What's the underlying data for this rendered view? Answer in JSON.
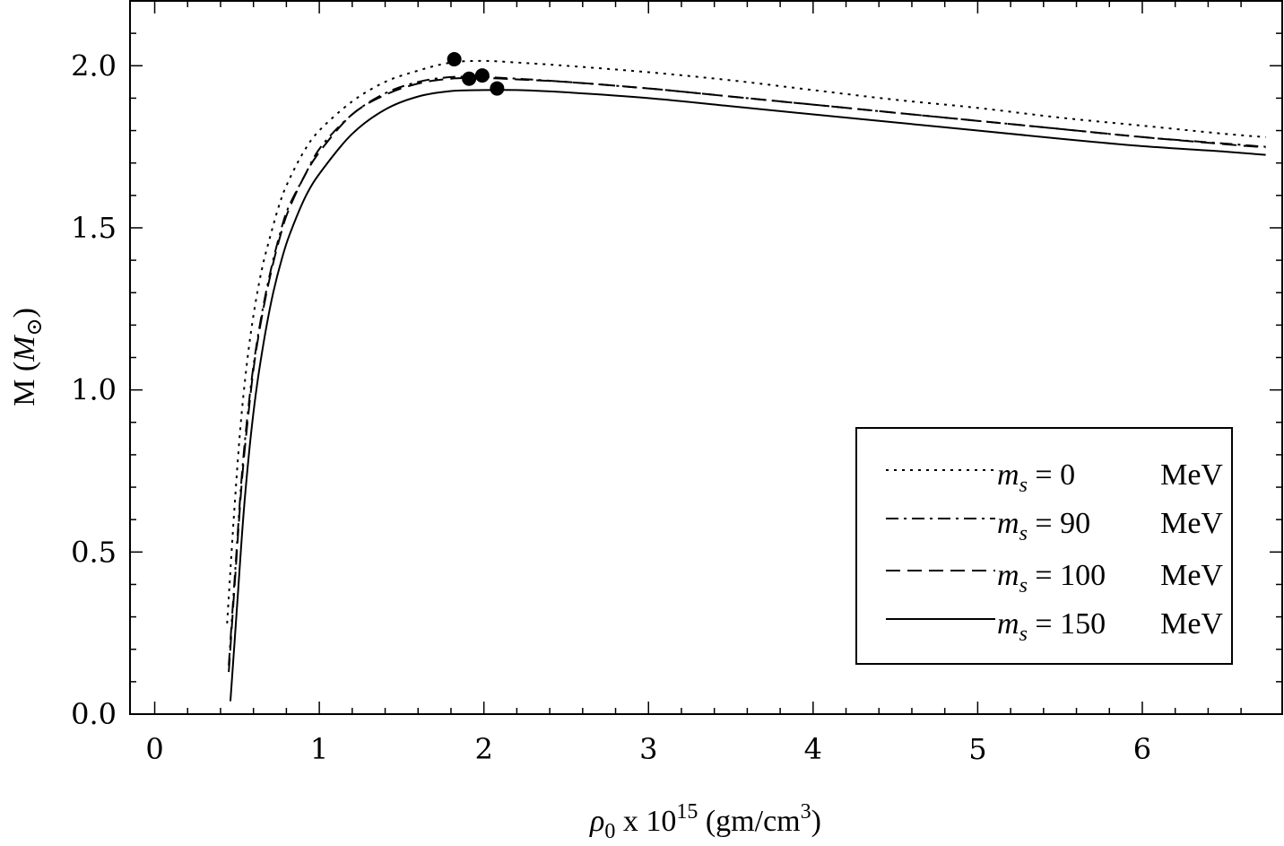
{
  "chart_data": {
    "type": "line",
    "title": "",
    "xlabel": {
      "rho": "ρ",
      "rho_sub": "0",
      "mid": " x 10",
      "exp": "15",
      "unit": " (gm/cm",
      "unit_exp": "3",
      "close": ")"
    },
    "ylabel": {
      "prefix": "M (",
      "italic": "M",
      "sub": "⊙",
      "close": ")"
    },
    "xlim": [
      -0.15,
      6.85
    ],
    "ylim": [
      0,
      2.2
    ],
    "xticks": [
      0,
      1,
      2,
      3,
      4,
      5,
      6
    ],
    "xtick_labels": [
      "0",
      "1",
      "2",
      "3",
      "4",
      "5",
      "6"
    ],
    "yticks": [
      0.0,
      0.5,
      1.0,
      1.5,
      2.0
    ],
    "ytick_labels": [
      "0.0",
      "0.5",
      "1.0",
      "1.5",
      "2.0"
    ],
    "grid": false,
    "legend_position": "bottom-right",
    "series": [
      {
        "name": "m_s = 0 MeV",
        "label": {
          "m": "m",
          "sub": "s",
          "eq": " = 0",
          "unit": "MeV"
        },
        "style": "dotted",
        "x": [
          0.44,
          0.48,
          0.52,
          0.56,
          0.6,
          0.65,
          0.7,
          0.75,
          0.8,
          0.9,
          1.0,
          1.2,
          1.4,
          1.6,
          1.8,
          2.0,
          2.2,
          2.5,
          3.0,
          3.5,
          4.0,
          4.5,
          5.0,
          5.5,
          6.0,
          6.5,
          6.75
        ],
        "y": [
          0.28,
          0.6,
          0.88,
          1.08,
          1.23,
          1.37,
          1.47,
          1.56,
          1.63,
          1.73,
          1.8,
          1.89,
          1.95,
          1.985,
          2.01,
          2.015,
          2.01,
          2.0,
          1.98,
          1.955,
          1.925,
          1.895,
          1.87,
          1.84,
          1.815,
          1.79,
          1.78
        ]
      },
      {
        "name": "m_s = 90 MeV",
        "label": {
          "m": "m",
          "sub": "s",
          "eq": " = 90",
          "unit": "MeV"
        },
        "style": "dashdot",
        "x": [
          0.45,
          0.49,
          0.53,
          0.57,
          0.61,
          0.66,
          0.71,
          0.76,
          0.81,
          0.91,
          1.01,
          1.2,
          1.4,
          1.6,
          1.8,
          2.0,
          2.2,
          2.5,
          3.0,
          3.5,
          4.0,
          4.5,
          5.0,
          5.5,
          6.0,
          6.5,
          6.75
        ],
        "y": [
          0.15,
          0.45,
          0.74,
          0.95,
          1.11,
          1.26,
          1.38,
          1.48,
          1.56,
          1.66,
          1.75,
          1.85,
          1.915,
          1.95,
          1.965,
          1.965,
          1.96,
          1.95,
          1.93,
          1.905,
          1.88,
          1.855,
          1.83,
          1.805,
          1.78,
          1.76,
          1.75
        ]
      },
      {
        "name": "m_s = 100 MeV",
        "label": {
          "m": "m",
          "sub": "s",
          "eq": " = 100",
          "unit": "MeV"
        },
        "style": "dashed",
        "x": [
          0.45,
          0.49,
          0.53,
          0.57,
          0.61,
          0.66,
          0.71,
          0.76,
          0.81,
          0.91,
          1.01,
          1.2,
          1.4,
          1.6,
          1.8,
          2.0,
          2.2,
          2.5,
          3.0,
          3.5,
          4.0,
          4.5,
          5.0,
          5.5,
          6.0,
          6.5,
          6.75
        ],
        "y": [
          0.13,
          0.43,
          0.72,
          0.93,
          1.1,
          1.25,
          1.37,
          1.47,
          1.55,
          1.66,
          1.74,
          1.85,
          1.91,
          1.945,
          1.96,
          1.962,
          1.958,
          1.95,
          1.93,
          1.905,
          1.88,
          1.855,
          1.83,
          1.805,
          1.78,
          1.758,
          1.748
        ]
      },
      {
        "name": "m_s = 150 MeV",
        "label": {
          "m": "m",
          "sub": "s",
          "eq": " = 150",
          "unit": "MeV"
        },
        "style": "solid",
        "x": [
          0.46,
          0.5,
          0.54,
          0.58,
          0.62,
          0.67,
          0.72,
          0.77,
          0.82,
          0.92,
          1.02,
          1.2,
          1.4,
          1.6,
          1.8,
          2.0,
          2.2,
          2.5,
          3.0,
          3.5,
          4.0,
          4.5,
          5.0,
          5.5,
          6.0,
          6.5,
          6.75
        ],
        "y": [
          0.04,
          0.33,
          0.62,
          0.84,
          1.01,
          1.17,
          1.3,
          1.4,
          1.48,
          1.6,
          1.68,
          1.79,
          1.865,
          1.905,
          1.922,
          1.925,
          1.925,
          1.918,
          1.9,
          1.875,
          1.85,
          1.825,
          1.8,
          1.775,
          1.752,
          1.735,
          1.725
        ]
      }
    ],
    "markers": [
      {
        "x": 1.82,
        "y": 2.02
      },
      {
        "x": 1.91,
        "y": 1.96
      },
      {
        "x": 1.99,
        "y": 1.97
      },
      {
        "x": 2.08,
        "y": 1.93
      }
    ]
  }
}
